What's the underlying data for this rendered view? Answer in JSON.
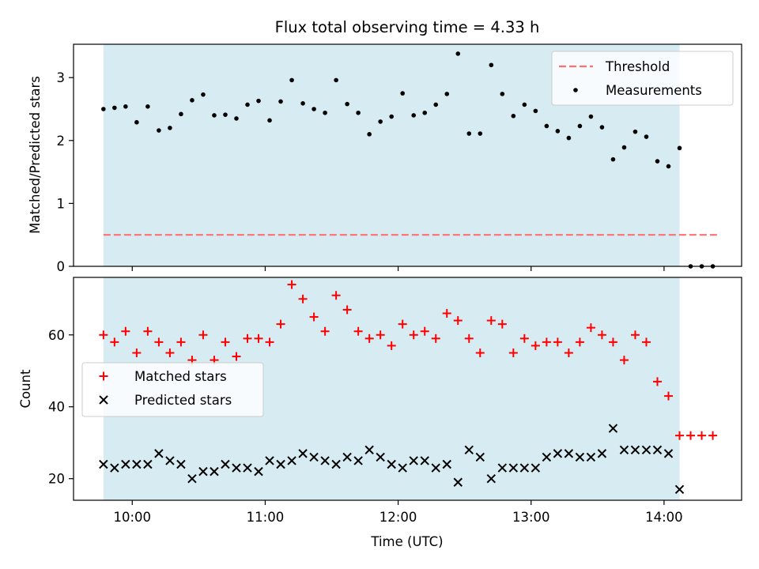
{
  "chart_data": [
    {
      "type": "scatter",
      "title": "Flux total observing time = 4.33 h",
      "ylabel": "Matched/Predicted stars",
      "ylim": [
        0,
        3.53
      ],
      "yticks": [
        "0",
        "1",
        "2",
        "3"
      ],
      "observing_window": [
        "09:47",
        "14:07"
      ],
      "threshold": {
        "name": "Threshold",
        "value": 0.5,
        "x_start": "09:47",
        "x_end": "14:24",
        "color": "#ff7070"
      },
      "series": [
        {
          "name": "Measurements",
          "color": "#000000",
          "x": [
            "09:47",
            "09:52",
            "09:57",
            "10:02",
            "10:07",
            "10:12",
            "10:17",
            "10:22",
            "10:27",
            "10:32",
            "10:37",
            "10:42",
            "10:47",
            "10:52",
            "10:57",
            "11:02",
            "11:07",
            "11:12",
            "11:17",
            "11:22",
            "11:27",
            "11:32",
            "11:37",
            "11:42",
            "11:47",
            "11:52",
            "11:57",
            "12:02",
            "12:07",
            "12:12",
            "12:17",
            "12:22",
            "12:27",
            "12:32",
            "12:37",
            "12:42",
            "12:47",
            "12:52",
            "12:57",
            "13:02",
            "13:07",
            "13:12",
            "13:17",
            "13:22",
            "13:27",
            "13:32",
            "13:37",
            "13:42",
            "13:47",
            "13:52",
            "13:57",
            "14:02",
            "14:07",
            "14:12",
            "14:17",
            "14:22"
          ],
          "y": [
            2.5,
            2.52,
            2.54,
            2.29,
            2.54,
            2.16,
            2.2,
            2.42,
            2.64,
            2.73,
            2.4,
            2.41,
            2.35,
            2.57,
            2.63,
            2.32,
            2.62,
            2.96,
            2.59,
            2.5,
            2.44,
            2.96,
            2.58,
            2.44,
            2.1,
            2.3,
            2.38,
            2.75,
            2.4,
            2.44,
            2.57,
            2.74,
            3.38,
            2.11,
            2.11,
            3.2,
            2.74,
            2.39,
            2.57,
            2.47,
            2.23,
            2.15,
            2.04,
            2.23,
            2.38,
            2.21,
            1.7,
            1.89,
            2.14,
            2.06,
            1.67,
            1.59,
            1.88,
            0,
            0,
            0
          ]
        }
      ],
      "legend": "upper right"
    },
    {
      "type": "scatter",
      "xlabel": "Time (UTC)",
      "ylabel": "Count",
      "ylim": [
        14,
        76
      ],
      "yticks": [
        "20",
        "40",
        "60"
      ],
      "xticks": [
        "10:00",
        "11:00",
        "12:00",
        "13:00",
        "14:00"
      ],
      "observing_window": [
        "09:47",
        "14:07"
      ],
      "series": [
        {
          "name": "Matched stars",
          "marker": "+",
          "color": "#ff0000",
          "x": [
            "09:47",
            "09:52",
            "09:57",
            "10:02",
            "10:07",
            "10:12",
            "10:17",
            "10:22",
            "10:27",
            "10:32",
            "10:37",
            "10:42",
            "10:47",
            "10:52",
            "10:57",
            "11:02",
            "11:07",
            "11:12",
            "11:17",
            "11:22",
            "11:27",
            "11:32",
            "11:37",
            "11:42",
            "11:47",
            "11:52",
            "11:57",
            "12:02",
            "12:07",
            "12:12",
            "12:17",
            "12:22",
            "12:27",
            "12:32",
            "12:37",
            "12:42",
            "12:47",
            "12:52",
            "12:57",
            "13:02",
            "13:07",
            "13:12",
            "13:17",
            "13:22",
            "13:27",
            "13:32",
            "13:37",
            "13:42",
            "13:47",
            "13:52",
            "13:57",
            "14:02",
            "14:07",
            "14:12",
            "14:17",
            "14:22"
          ],
          "y": [
            60,
            58,
            61,
            55,
            61,
            58,
            55,
            58,
            53,
            60,
            53,
            58,
            54,
            59,
            59,
            58,
            63,
            74,
            70,
            65,
            61,
            71,
            67,
            61,
            59,
            60,
            57,
            63,
            60,
            61,
            59,
            66,
            64,
            59,
            55,
            64,
            63,
            55,
            59,
            57,
            58,
            58,
            55,
            58,
            62,
            60,
            58,
            53,
            60,
            58,
            47,
            43,
            32,
            32,
            32,
            32
          ]
        },
        {
          "name": "Predicted stars",
          "marker": "x",
          "color": "#000000",
          "x": [
            "09:47",
            "09:52",
            "09:57",
            "10:02",
            "10:07",
            "10:12",
            "10:17",
            "10:22",
            "10:27",
            "10:32",
            "10:37",
            "10:42",
            "10:47",
            "10:52",
            "10:57",
            "11:02",
            "11:07",
            "11:12",
            "11:17",
            "11:22",
            "11:27",
            "11:32",
            "11:37",
            "11:42",
            "11:47",
            "11:52",
            "11:57",
            "12:02",
            "12:07",
            "12:12",
            "12:17",
            "12:22",
            "12:27",
            "12:32",
            "12:37",
            "12:42",
            "12:47",
            "12:52",
            "12:57",
            "13:02",
            "13:07",
            "13:12",
            "13:17",
            "13:22",
            "13:27",
            "13:32",
            "13:37",
            "13:42",
            "13:47",
            "13:52",
            "13:57",
            "14:02",
            "14:07"
          ],
          "y": [
            24,
            23,
            24,
            24,
            24,
            27,
            25,
            24,
            20,
            22,
            22,
            24,
            23,
            23,
            22,
            25,
            24,
            25,
            27,
            26,
            25,
            24,
            26,
            25,
            28,
            26,
            24,
            23,
            25,
            25,
            23,
            24,
            19,
            28,
            26,
            20,
            23,
            23,
            23,
            23,
            26,
            27,
            27,
            26,
            26,
            27,
            34,
            28,
            28,
            28,
            28,
            27,
            17
          ]
        }
      ],
      "legend": "center left"
    }
  ]
}
